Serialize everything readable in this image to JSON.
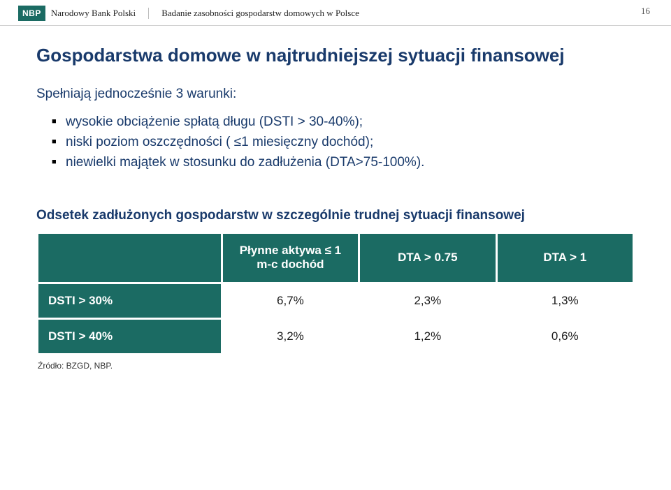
{
  "header": {
    "logo": "NBP",
    "bank_name": "Narodowy Bank Polski",
    "doc_title": "Badanie zasobności gospodarstw domowych w Polsce",
    "page_number": "16"
  },
  "main": {
    "title": "Gospodarstwa domowe w najtrudniejszej sytuacji finansowej",
    "subtitle": "Spełniają jednocześnie 3 warunki:",
    "bullets": [
      "wysokie obciążenie spłatą długu (DSTI > 30-40%);",
      "niski poziom oszczędności ( ≤1 miesięczny dochód);",
      "niewielki majątek w stosunku do zadłużenia (DTA>75-100%)."
    ],
    "table_title": "Odsetek zadłużonych gospodarstw w szczególnie trudnej sytuacji finansowej",
    "table": {
      "headers": [
        {
          "line1": "Płynne aktywa ≤ 1",
          "line2": "m-c dochód"
        },
        {
          "line1": "DTA > 0.75",
          "line2": ""
        },
        {
          "line1": "DTA > 1",
          "line2": ""
        }
      ],
      "rows": [
        {
          "label": "DSTI > 30%",
          "vals": [
            "6,7%",
            "2,3%",
            "1,3%"
          ]
        },
        {
          "label": "DSTI > 40%",
          "vals": [
            "3,2%",
            "1,2%",
            "0,6%"
          ]
        }
      ]
    },
    "source": "Źródło: BZGD, NBP."
  },
  "colors": {
    "brand_blue": "#193a6b",
    "teal": "#1b6b63",
    "white": "#ffffff"
  }
}
